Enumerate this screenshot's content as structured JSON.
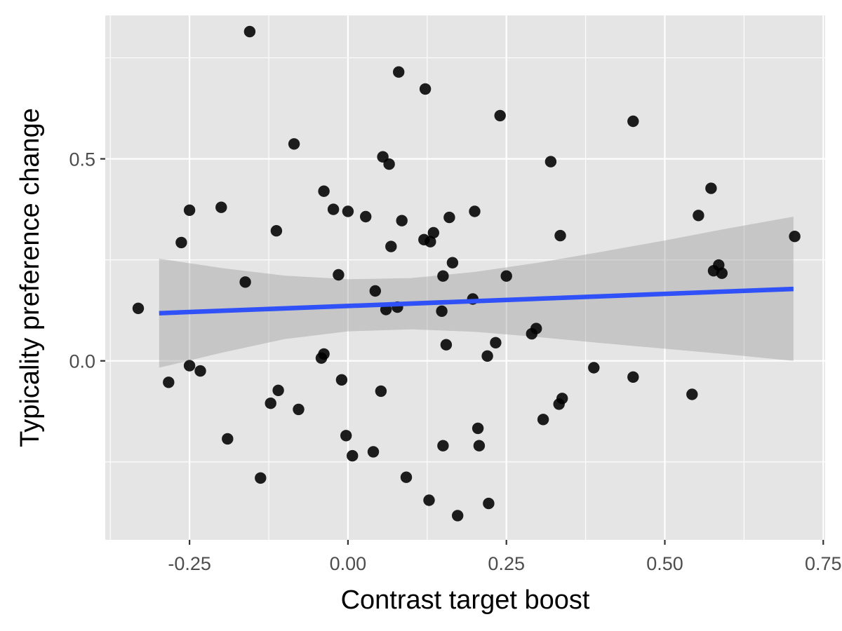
{
  "chart_data": {
    "type": "scatter",
    "title": "",
    "xlabel": "Contrast target boost",
    "ylabel": "Typicality preference change",
    "xlim": [
      -0.383,
      0.753
    ],
    "ylim": [
      -0.443,
      0.855
    ],
    "x_ticks": [
      {
        "value": -0.25,
        "label": "-0.25"
      },
      {
        "value": 0.0,
        "label": "0.00"
      },
      {
        "value": 0.25,
        "label": "0.25"
      },
      {
        "value": 0.5,
        "label": "0.50"
      },
      {
        "value": 0.75,
        "label": "0.75"
      }
    ],
    "y_ticks": [
      {
        "value": 0.0,
        "label": "0.0"
      },
      {
        "value": 0.5,
        "label": "0.5"
      }
    ],
    "y_minor_ticks": [
      -0.25,
      0.25,
      0.75
    ],
    "x_minor_ticks": [
      -0.375,
      -0.125,
      0.125,
      0.375,
      0.625
    ],
    "grid": true,
    "colors": {
      "panel": "#e5e5e5",
      "grid": "#ffffff",
      "point": "#000000",
      "trend": "#3050f8",
      "ribbon": "#999999"
    },
    "points": [
      [
        -0.331,
        0.13
      ],
      [
        -0.283,
        -0.053
      ],
      [
        -0.263,
        0.293
      ],
      [
        -0.25,
        0.373
      ],
      [
        -0.25,
        -0.012
      ],
      [
        -0.233,
        -0.025
      ],
      [
        -0.2,
        0.38
      ],
      [
        -0.19,
        -0.193
      ],
      [
        -0.162,
        0.195
      ],
      [
        -0.155,
        0.815
      ],
      [
        -0.138,
        -0.29
      ],
      [
        -0.122,
        -0.105
      ],
      [
        -0.113,
        0.322
      ],
      [
        -0.11,
        -0.073
      ],
      [
        -0.085,
        0.537
      ],
      [
        -0.078,
        -0.12
      ],
      [
        -0.042,
        0.007
      ],
      [
        -0.038,
        0.42
      ],
      [
        -0.038,
        0.017
      ],
      [
        -0.023,
        0.375
      ],
      [
        -0.015,
        0.213
      ],
      [
        -0.01,
        -0.047
      ],
      [
        -0.003,
        -0.185
      ],
      [
        0.0,
        0.37
      ],
      [
        0.007,
        -0.235
      ],
      [
        0.028,
        0.357
      ],
      [
        0.04,
        -0.225
      ],
      [
        0.043,
        0.173
      ],
      [
        0.052,
        -0.075
      ],
      [
        0.055,
        0.505
      ],
      [
        0.06,
        0.127
      ],
      [
        0.065,
        0.487
      ],
      [
        0.068,
        0.283
      ],
      [
        0.078,
        0.133
      ],
      [
        0.08,
        0.715
      ],
      [
        0.085,
        0.347
      ],
      [
        0.092,
        -0.288
      ],
      [
        0.12,
        0.3
      ],
      [
        0.122,
        0.673
      ],
      [
        0.128,
        -0.345
      ],
      [
        0.13,
        0.295
      ],
      [
        0.135,
        0.317
      ],
      [
        0.148,
        0.123
      ],
      [
        0.15,
        0.21
      ],
      [
        0.15,
        -0.21
      ],
      [
        0.155,
        0.04
      ],
      [
        0.16,
        0.355
      ],
      [
        0.165,
        0.243
      ],
      [
        0.173,
        -0.383
      ],
      [
        0.197,
        0.153
      ],
      [
        0.2,
        0.37
      ],
      [
        0.205,
        -0.167
      ],
      [
        0.207,
        -0.21
      ],
      [
        0.22,
        0.012
      ],
      [
        0.222,
        -0.353
      ],
      [
        0.233,
        0.045
      ],
      [
        0.24,
        0.607
      ],
      [
        0.25,
        0.21
      ],
      [
        0.29,
        0.067
      ],
      [
        0.297,
        0.08
      ],
      [
        0.308,
        -0.145
      ],
      [
        0.32,
        0.493
      ],
      [
        0.333,
        -0.107
      ],
      [
        0.335,
        0.31
      ],
      [
        0.338,
        -0.093
      ],
      [
        0.388,
        -0.017
      ],
      [
        0.45,
        0.593
      ],
      [
        0.45,
        -0.04
      ],
      [
        0.543,
        -0.083
      ],
      [
        0.553,
        0.36
      ],
      [
        0.573,
        0.427
      ],
      [
        0.577,
        0.223
      ],
      [
        0.585,
        0.237
      ],
      [
        0.59,
        0.217
      ],
      [
        0.705,
        0.308
      ]
    ],
    "trend": {
      "method": "linear",
      "x": [
        -0.298,
        0.703
      ],
      "y": [
        0.118,
        0.178
      ],
      "ribbon_upper": [
        [
          -0.298,
          0.253
        ],
        [
          -0.2,
          0.23
        ],
        [
          -0.1,
          0.211
        ],
        [
          0.0,
          0.202
        ],
        [
          0.1,
          0.205
        ],
        [
          0.2,
          0.22
        ],
        [
          0.3,
          0.243
        ],
        [
          0.4,
          0.27
        ],
        [
          0.5,
          0.298
        ],
        [
          0.6,
          0.328
        ],
        [
          0.703,
          0.357
        ]
      ],
      "ribbon_lower": [
        [
          -0.298,
          -0.017
        ],
        [
          -0.2,
          0.02
        ],
        [
          -0.1,
          0.054
        ],
        [
          0.0,
          0.073
        ],
        [
          0.1,
          0.078
        ],
        [
          0.2,
          0.072
        ],
        [
          0.3,
          0.059
        ],
        [
          0.4,
          0.044
        ],
        [
          0.5,
          0.03
        ],
        [
          0.6,
          0.016
        ],
        [
          0.703,
          0.0
        ]
      ]
    }
  }
}
